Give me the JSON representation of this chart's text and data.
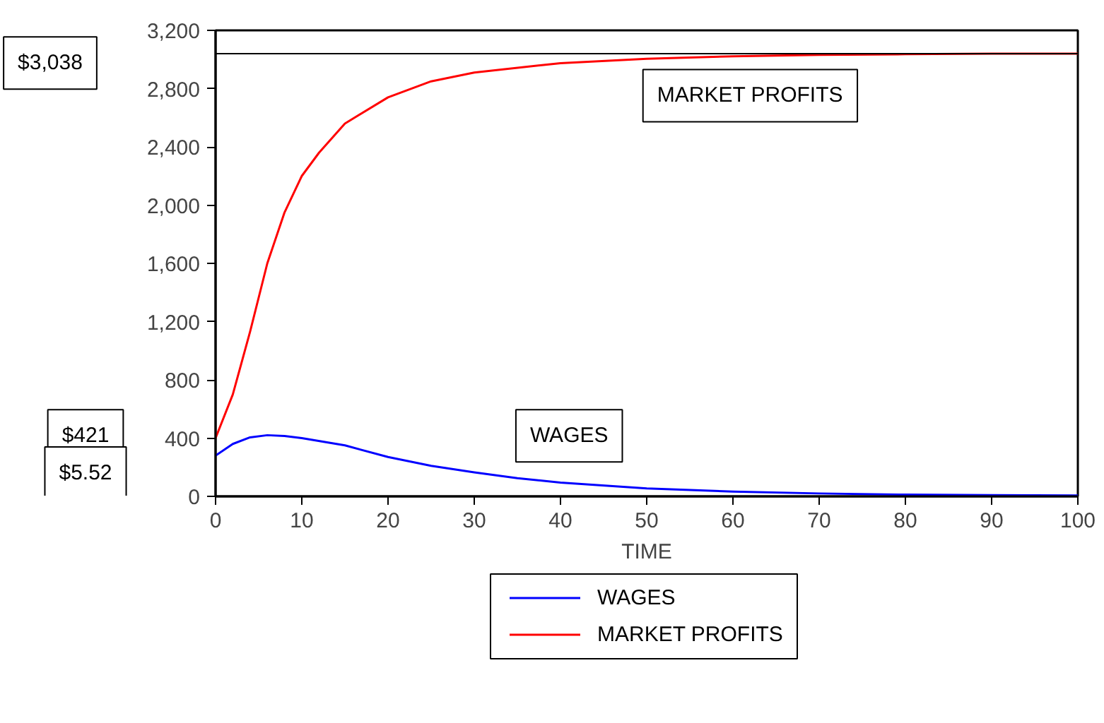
{
  "chart_data": {
    "type": "line",
    "xlabel": "TIME",
    "xlim": [
      0,
      100
    ],
    "xticks": [
      0,
      10,
      20,
      30,
      40,
      50,
      60,
      70,
      80,
      90,
      100
    ],
    "ylim": [
      0,
      3200
    ],
    "yticks": [
      {
        "value": 0,
        "label": "0"
      },
      {
        "value": 400,
        "label": "400"
      },
      {
        "value": 800,
        "label": "800"
      },
      {
        "value": 1200,
        "label": "1,200"
      },
      {
        "value": 1600,
        "label": "1,600"
      },
      {
        "value": 2000,
        "label": "2,000"
      },
      {
        "value": 2400,
        "label": "2,400"
      },
      {
        "value": 2800,
        "label": "2,800"
      },
      {
        "value": 3200,
        "label": "3,200"
      }
    ],
    "grid": false,
    "legend": "bottom",
    "line_style": "solid",
    "marker": "none",
    "series": [
      {
        "name": "WAGES",
        "color": "#0000ff",
        "x": [
          0,
          2,
          4,
          6,
          8,
          10,
          15,
          20,
          25,
          30,
          35,
          40,
          50,
          60,
          70,
          80,
          90,
          100
        ],
        "values": [
          280,
          360,
          405,
          420,
          415,
          400,
          350,
          270,
          210,
          165,
          125,
          95,
          55,
          33,
          20,
          12,
          8,
          6
        ]
      },
      {
        "name": "MARKET PROFITS",
        "color": "#ff0000",
        "x": [
          0,
          2,
          4,
          6,
          8,
          10,
          12,
          15,
          20,
          25,
          30,
          40,
          50,
          60,
          70,
          80,
          90,
          100
        ],
        "values": [
          400,
          700,
          1130,
          1600,
          1950,
          2200,
          2360,
          2560,
          2740,
          2850,
          2910,
          2975,
          3005,
          3022,
          3032,
          3036,
          3040,
          3040
        ]
      }
    ],
    "ref_lines": [
      {
        "axis": "y",
        "value": 3040,
        "color": "#000000"
      }
    ],
    "annotations": [
      "MARKET PROFITS",
      "WAGES",
      "$3,038",
      "$421",
      "$5.52"
    ]
  }
}
